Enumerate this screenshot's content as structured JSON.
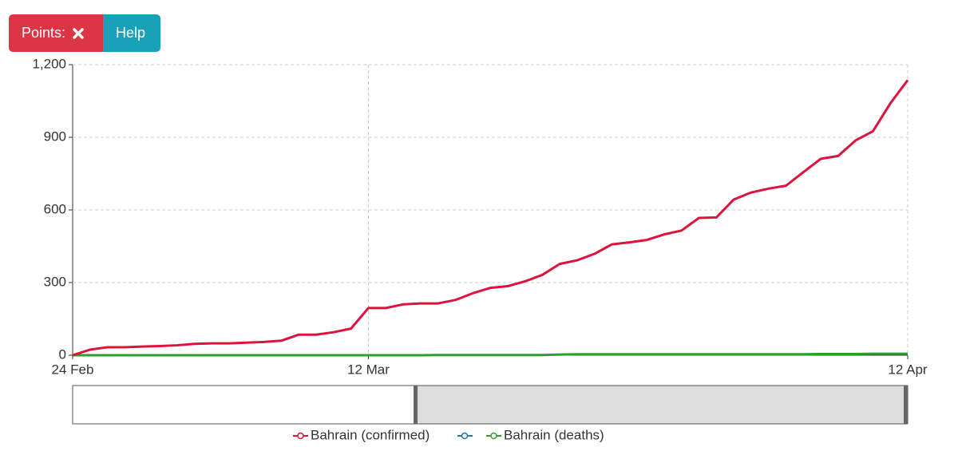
{
  "buttons": {
    "points": "Points:",
    "help": "Help"
  },
  "chart_data": {
    "type": "line",
    "categories": [
      "24 Feb",
      null,
      null,
      null,
      null,
      null,
      null,
      null,
      null,
      null,
      null,
      null,
      null,
      null,
      null,
      null,
      null,
      "12 Mar",
      null,
      null,
      null,
      null,
      null,
      null,
      null,
      null,
      null,
      null,
      null,
      null,
      null,
      null,
      null,
      null,
      null,
      null,
      null,
      null,
      null,
      null,
      null,
      null,
      null,
      null,
      null,
      null,
      null,
      null,
      "12 Apr"
    ],
    "series": [
      {
        "name": "Bahrain (confirmed)",
        "color": "#dc143c",
        "values": [
          0,
          23,
          33,
          33,
          36,
          38,
          41,
          47,
          49,
          49,
          52,
          55,
          60,
          85,
          85,
          95,
          110,
          195,
          195,
          210,
          214,
          214,
          228,
          256,
          278,
          285,
          305,
          332,
          377,
          392,
          419,
          458,
          466,
          476,
          499,
          515,
          567,
          569,
          643,
          672,
          688,
          700,
          756,
          811,
          823,
          887,
          925,
          1040,
          1136
        ]
      },
      {
        "name": "Bahrain (deaths)",
        "color": "#2ca02c",
        "values": [
          0,
          0,
          0,
          0,
          0,
          0,
          0,
          0,
          0,
          0,
          0,
          0,
          0,
          0,
          0,
          0,
          0,
          0,
          0,
          0,
          0,
          1,
          1,
          1,
          1,
          1,
          1,
          1,
          3,
          4,
          4,
          4,
          4,
          4,
          4,
          4,
          4,
          4,
          4,
          4,
          4,
          4,
          4,
          5,
          5,
          5,
          6,
          6,
          6
        ]
      }
    ],
    "ylim": [
      0,
      1200
    ],
    "yticks": [
      0,
      300,
      600,
      900,
      {
        "value": 1200,
        "label": "1,200"
      }
    ],
    "grid": true
  }
}
